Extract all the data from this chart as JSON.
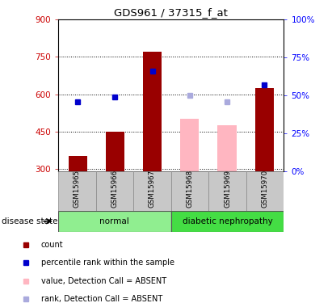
{
  "title": "GDS961 / 37315_f_at",
  "samples": [
    "GSM15965",
    "GSM15966",
    "GSM15967",
    "GSM15968",
    "GSM15969",
    "GSM15970"
  ],
  "counts": [
    350,
    448,
    770,
    500,
    475,
    625
  ],
  "percentile_ranks": [
    46,
    49,
    66,
    50,
    46,
    57
  ],
  "absent": [
    false,
    false,
    false,
    true,
    true,
    false
  ],
  "ylim_left": [
    290,
    900
  ],
  "ylim_right": [
    0,
    100
  ],
  "yticks_left": [
    300,
    450,
    600,
    750,
    900
  ],
  "yticks_right": [
    0,
    25,
    50,
    75,
    100
  ],
  "groups": [
    {
      "label": "normal",
      "indices": [
        0,
        1,
        2
      ]
    },
    {
      "label": "diabetic nephropathy",
      "indices": [
        3,
        4,
        5
      ]
    }
  ],
  "group_colors": [
    "#90EE90",
    "#44DD44"
  ],
  "bar_color_present": "#990000",
  "bar_color_absent": "#FFB6C1",
  "dot_color_present": "#0000CC",
  "dot_color_absent": "#AAAADD",
  "bar_width": 0.5,
  "background_label": "#C8C8C8",
  "base_value": 290,
  "legend_items": [
    {
      "color": "#990000",
      "label": "count"
    },
    {
      "color": "#0000CC",
      "label": "percentile rank within the sample"
    },
    {
      "color": "#FFB6C1",
      "label": "value, Detection Call = ABSENT"
    },
    {
      "color": "#AAAADD",
      "label": "rank, Detection Call = ABSENT"
    }
  ]
}
